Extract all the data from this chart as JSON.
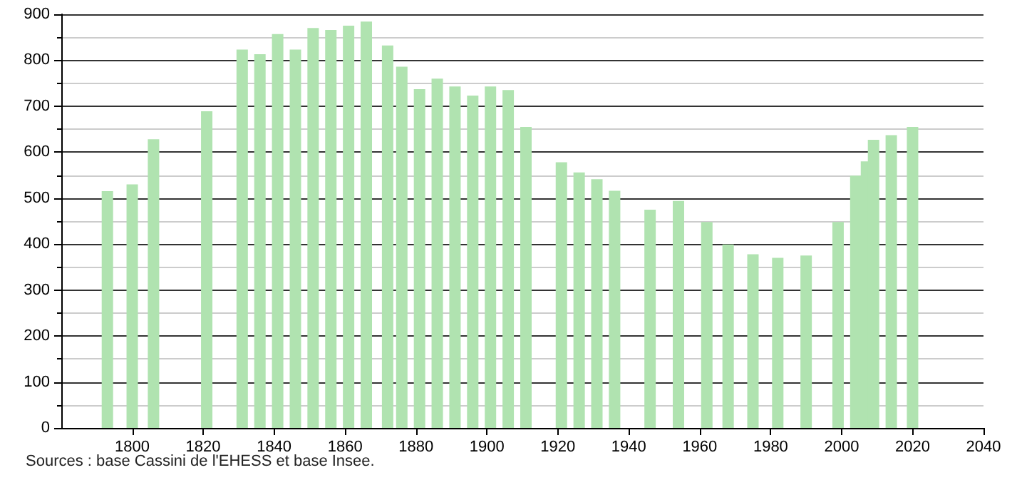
{
  "chart_data": {
    "type": "bar",
    "x": [
      1793,
      1800,
      1806,
      1821,
      1831,
      1836,
      1841,
      1846,
      1851,
      1856,
      1861,
      1866,
      1872,
      1876,
      1881,
      1886,
      1891,
      1896,
      1901,
      1906,
      1911,
      1921,
      1926,
      1931,
      1936,
      1946,
      1954,
      1962,
      1968,
      1975,
      1982,
      1990,
      1999,
      2004,
      2007,
      2009,
      2014,
      2020
    ],
    "values": [
      515,
      530,
      628,
      689,
      823,
      813,
      857,
      823,
      870,
      866,
      875,
      884,
      832,
      786,
      737,
      760,
      743,
      723,
      743,
      735,
      655,
      578,
      556,
      541,
      516,
      475,
      494,
      448,
      399,
      378,
      370,
      375,
      448,
      549,
      580,
      627,
      637,
      655
    ],
    "color": "#b0e3b0",
    "xlim": [
      1780,
      2040
    ],
    "xticks": [
      1800,
      1820,
      1840,
      1860,
      1880,
      1900,
      1920,
      1940,
      1960,
      1980,
      2000,
      2020,
      2040
    ],
    "ylim": [
      0,
      900
    ],
    "yticks": [
      0,
      100,
      200,
      300,
      400,
      500,
      600,
      700,
      800,
      900
    ],
    "grid": "y",
    "annotations": [
      "Sources : base Cassini de l'EHESS et base Insee."
    ]
  }
}
